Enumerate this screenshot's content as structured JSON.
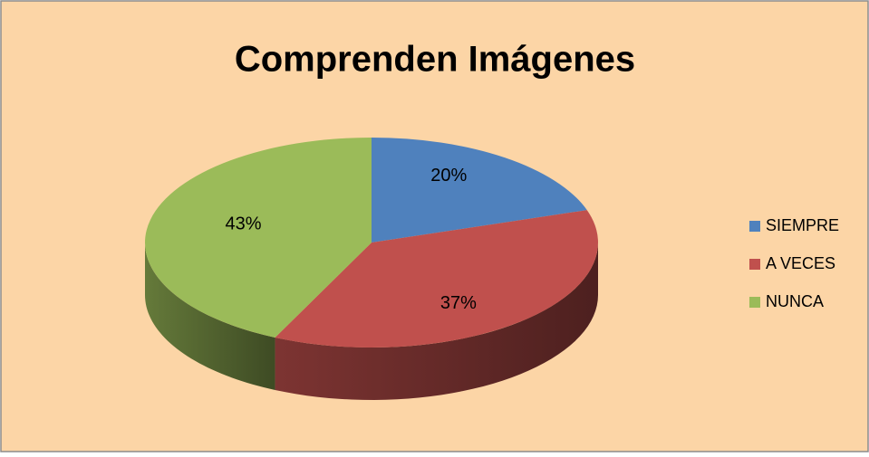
{
  "chart_data": {
    "type": "pie3d",
    "title": "Comprenden Imágenes",
    "categories": [
      "SIEMPRE",
      "A VECES",
      "NUNCA"
    ],
    "values": [
      20,
      37,
      43
    ],
    "value_labels": [
      "20%",
      "37%",
      "43%"
    ],
    "colors": [
      "#4f81bd",
      "#c0504d",
      "#9bbb59"
    ],
    "legend": "right"
  }
}
